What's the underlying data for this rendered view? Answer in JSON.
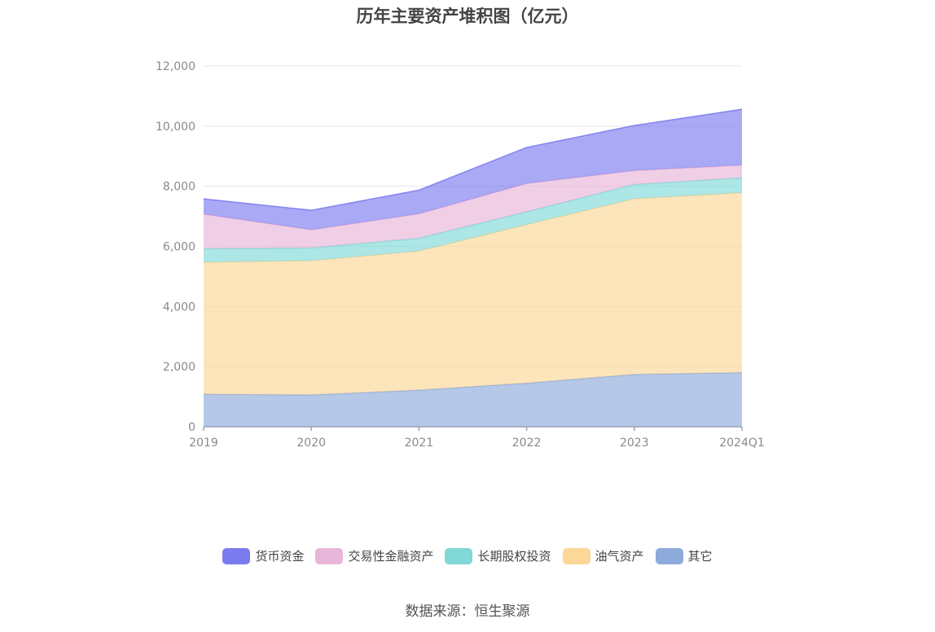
{
  "chart_data": {
    "type": "area",
    "stacked": true,
    "title": "历年主要资产堆积图（亿元）",
    "categories": [
      "2019",
      "2020",
      "2021",
      "2022",
      "2023",
      "2024Q1"
    ],
    "ylim": [
      0,
      12000
    ],
    "yticks": [
      0,
      2000,
      4000,
      6000,
      8000,
      10000,
      12000
    ],
    "ytick_labels": [
      "0",
      "2,000",
      "4,000",
      "6,000",
      "8,000",
      "10,000",
      "12,000"
    ],
    "grid": true,
    "legend_position": "bottom",
    "series": [
      {
        "name": "其它",
        "color": "#8eaadb",
        "values": [
          1080,
          1060,
          1220,
          1450,
          1740,
          1800
        ]
      },
      {
        "name": "油气资产",
        "color": "#fcd797",
        "values": [
          4390,
          4460,
          4620,
          5270,
          5840,
          5980
        ]
      },
      {
        "name": "长期股权投资",
        "color": "#80d8d7",
        "values": [
          450,
          430,
          430,
          430,
          480,
          500
        ]
      },
      {
        "name": "交易性金融资产",
        "color": "#e8b6d8",
        "values": [
          1150,
          600,
          810,
          940,
          460,
          420
        ]
      },
      {
        "name": "货币资金",
        "color": "#7b7bf0",
        "values": [
          510,
          650,
          790,
          1200,
          1500,
          1860
        ]
      }
    ],
    "legend_order": [
      "货币资金",
      "交易性金融资产",
      "长期股权投资",
      "油气资产",
      "其它"
    ]
  },
  "source": "数据来源：恒生聚源"
}
